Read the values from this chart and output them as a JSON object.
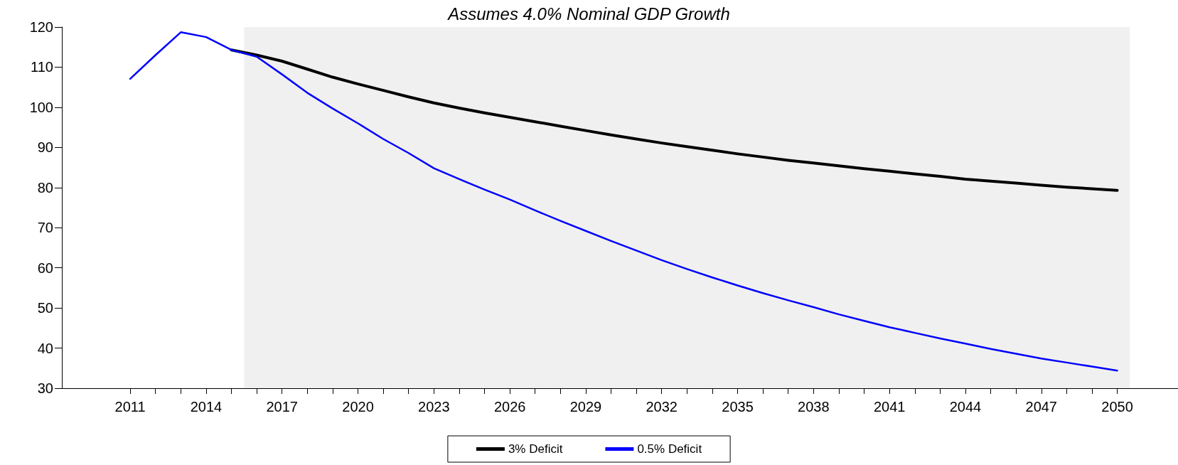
{
  "chart_data": {
    "type": "line",
    "title": "Assumes 4.0% Nominal GDP Growth",
    "series": [
      {
        "name": "3% Deficit",
        "color": "#000000",
        "x": [
          2015,
          2016,
          2017,
          2018,
          2019,
          2020,
          2021,
          2022,
          2023,
          2024,
          2025,
          2026,
          2027,
          2028,
          2029,
          2030,
          2031,
          2032,
          2033,
          2034,
          2035,
          2036,
          2037,
          2038,
          2039,
          2040,
          2041,
          2042,
          2043,
          2044,
          2045,
          2046,
          2047,
          2048,
          2049,
          2050
        ],
        "values": [
          114.3,
          113.0,
          111.5,
          109.5,
          107.5,
          105.8,
          104.2,
          102.6,
          101.1,
          99.8,
          98.6,
          97.5,
          96.4,
          95.3,
          94.2,
          93.1,
          92.1,
          91.1,
          90.2,
          89.3,
          88.4,
          87.6,
          86.8,
          86.1,
          85.4,
          84.7,
          84.1,
          83.4,
          82.8,
          82.1,
          81.6,
          81.1,
          80.6,
          80.1,
          79.7,
          79.3
        ]
      },
      {
        "name": "0.5% Deficit",
        "color": "#0000ff",
        "x": [
          2011,
          2012,
          2013,
          2014,
          2015,
          2016,
          2017,
          2018,
          2019,
          2020,
          2021,
          2022,
          2023,
          2024,
          2025,
          2026,
          2027,
          2028,
          2029,
          2030,
          2031,
          2032,
          2033,
          2034,
          2035,
          2036,
          2037,
          2038,
          2039,
          2040,
          2041,
          2042,
          2043,
          2044,
          2045,
          2046,
          2047,
          2048,
          2049,
          2050
        ],
        "values": [
          107.1,
          113.0,
          118.7,
          117.5,
          114.3,
          112.6,
          108.2,
          103.6,
          99.7,
          96.0,
          92.1,
          88.6,
          84.8,
          82.1,
          79.5,
          77.0,
          74.3,
          71.7,
          69.2,
          66.7,
          64.3,
          61.9,
          59.7,
          57.6,
          55.6,
          53.7,
          51.9,
          50.2,
          48.4,
          46.8,
          45.2,
          43.8,
          42.4,
          41.1,
          39.8,
          38.6,
          37.4,
          36.4,
          35.4,
          34.4
        ]
      }
    ],
    "xlim": [
      2008.3,
      2052.4
    ],
    "xticks": [
      2011,
      {
        "value": 2012,
        "label": null
      },
      {
        "value": 2013,
        "label": null
      },
      2014,
      {
        "value": 2015,
        "label": null
      },
      {
        "value": 2016,
        "label": null
      },
      2017,
      {
        "value": 2018,
        "label": null
      },
      {
        "value": 2019,
        "label": null
      },
      2020,
      {
        "value": 2021,
        "label": null
      },
      {
        "value": 2022,
        "label": null
      },
      2023,
      {
        "value": 2024,
        "label": null
      },
      {
        "value": 2025,
        "label": null
      },
      2026,
      {
        "value": 2027,
        "label": null
      },
      {
        "value": 2028,
        "label": null
      },
      2029,
      {
        "value": 2030,
        "label": null
      },
      {
        "value": 2031,
        "label": null
      },
      2032,
      {
        "value": 2033,
        "label": null
      },
      {
        "value": 2034,
        "label": null
      },
      2035,
      {
        "value": 2036,
        "label": null
      },
      {
        "value": 2037,
        "label": null
      },
      2038,
      {
        "value": 2039,
        "label": null
      },
      {
        "value": 2040,
        "label": null
      },
      2041,
      {
        "value": 2042,
        "label": null
      },
      {
        "value": 2043,
        "label": null
      },
      2044,
      {
        "value": 2045,
        "label": null
      },
      {
        "value": 2046,
        "label": null
      },
      2047,
      {
        "value": 2048,
        "label": null
      },
      {
        "value": 2049,
        "label": null
      },
      2050
    ],
    "ylim": [
      30,
      120
    ],
    "yticks": [
      30,
      40,
      50,
      60,
      70,
      80,
      90,
      100,
      110,
      120
    ],
    "bands": [
      {
        "axis": "x",
        "from": 2015.5,
        "to": 2050.5,
        "color": "#f0f0f0"
      }
    ],
    "grid": false,
    "legend": "bottom",
    "marker": "none",
    "line_style": "solid"
  }
}
